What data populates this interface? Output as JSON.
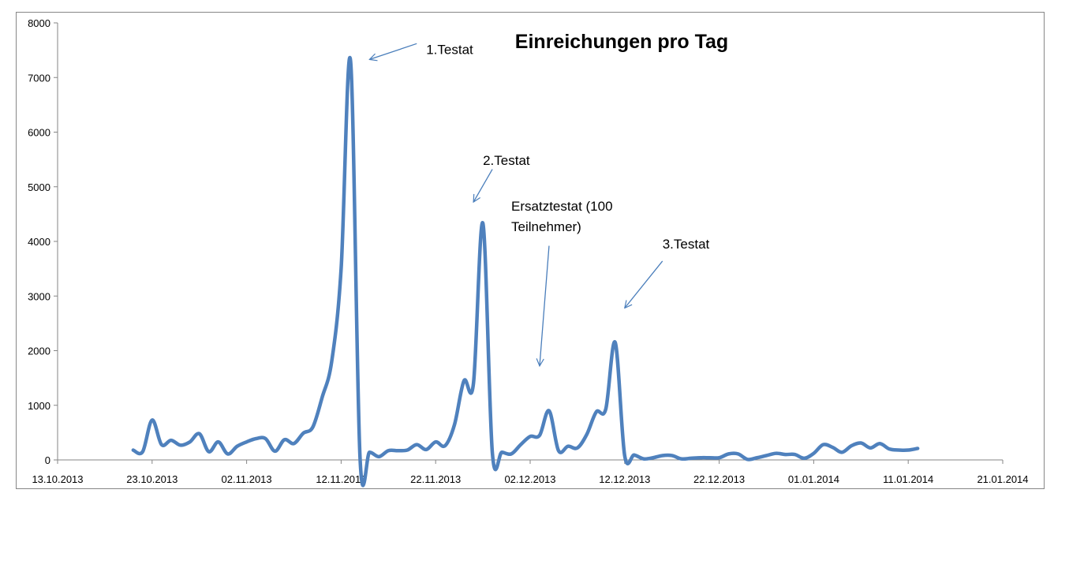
{
  "chart_data": {
    "type": "line",
    "title": "Einreichungen pro Tag",
    "xlabel": "",
    "ylabel": "",
    "x_axis": {
      "type": "date",
      "min": "2013-10-13",
      "max": "2014-01-21",
      "tick_labels": [
        "13.10.2013",
        "23.10.2013",
        "02.11.2013",
        "12.11.2013",
        "22.11.2013",
        "02.12.2013",
        "12.12.2013",
        "22.12.2013",
        "01.01.2014",
        "11.01.2014",
        "21.01.2014"
      ]
    },
    "ylim": [
      0,
      8000
    ],
    "y_ticks": [
      0,
      1000,
      2000,
      3000,
      4000,
      5000,
      6000,
      7000,
      8000
    ],
    "grid": false,
    "legend": "none",
    "series": [
      {
        "color": "#4f81bd",
        "points": [
          [
            "2013-10-21",
            180
          ],
          [
            "2013-10-22",
            150
          ],
          [
            "2013-10-23",
            730
          ],
          [
            "2013-10-24",
            280
          ],
          [
            "2013-10-25",
            360
          ],
          [
            "2013-10-26",
            270
          ],
          [
            "2013-10-27",
            330
          ],
          [
            "2013-10-28",
            480
          ],
          [
            "2013-10-29",
            150
          ],
          [
            "2013-10-30",
            330
          ],
          [
            "2013-10-31",
            110
          ],
          [
            "2013-11-01",
            250
          ],
          [
            "2013-11-02",
            330
          ],
          [
            "2013-11-03",
            390
          ],
          [
            "2013-11-04",
            390
          ],
          [
            "2013-11-05",
            160
          ],
          [
            "2013-11-06",
            370
          ],
          [
            "2013-11-07",
            300
          ],
          [
            "2013-11-08",
            490
          ],
          [
            "2013-11-09",
            600
          ],
          [
            "2013-11-10",
            1150
          ],
          [
            "2013-11-11",
            1800
          ],
          [
            "2013-11-12",
            3500
          ],
          [
            "2013-11-13",
            7300
          ],
          [
            "2013-11-14",
            40
          ],
          [
            "2013-11-15",
            140
          ],
          [
            "2013-11-16",
            60
          ],
          [
            "2013-11-17",
            170
          ],
          [
            "2013-11-18",
            170
          ],
          [
            "2013-11-19",
            180
          ],
          [
            "2013-11-20",
            280
          ],
          [
            "2013-11-21",
            190
          ],
          [
            "2013-11-22",
            330
          ],
          [
            "2013-11-23",
            260
          ],
          [
            "2013-11-24",
            650
          ],
          [
            "2013-11-25",
            1450
          ],
          [
            "2013-11-26",
            1400
          ],
          [
            "2013-11-27",
            4330
          ],
          [
            "2013-11-28",
            130
          ],
          [
            "2013-11-29",
            140
          ],
          [
            "2013-11-30",
            110
          ],
          [
            "2013-12-01",
            280
          ],
          [
            "2013-12-02",
            430
          ],
          [
            "2013-12-03",
            450
          ],
          [
            "2013-12-04",
            900
          ],
          [
            "2013-12-05",
            170
          ],
          [
            "2013-12-06",
            250
          ],
          [
            "2013-12-07",
            220
          ],
          [
            "2013-12-08",
            470
          ],
          [
            "2013-12-09",
            880
          ],
          [
            "2013-12-10",
            930
          ],
          [
            "2013-12-11",
            2150
          ],
          [
            "2013-12-12",
            80
          ],
          [
            "2013-12-13",
            90
          ],
          [
            "2013-12-14",
            20
          ],
          [
            "2013-12-15",
            40
          ],
          [
            "2013-12-16",
            80
          ],
          [
            "2013-12-17",
            80
          ],
          [
            "2013-12-18",
            20
          ],
          [
            "2013-12-19",
            30
          ],
          [
            "2013-12-20",
            40
          ],
          [
            "2013-12-21",
            40
          ],
          [
            "2013-12-22",
            40
          ],
          [
            "2013-12-23",
            110
          ],
          [
            "2013-12-24",
            110
          ],
          [
            "2013-12-25",
            10
          ],
          [
            "2013-12-26",
            40
          ],
          [
            "2013-12-27",
            80
          ],
          [
            "2013-12-28",
            120
          ],
          [
            "2013-12-29",
            100
          ],
          [
            "2013-12-30",
            100
          ],
          [
            "2013-12-31",
            30
          ],
          [
            "2014-01-01",
            120
          ],
          [
            "2014-01-02",
            280
          ],
          [
            "2014-01-03",
            230
          ],
          [
            "2014-01-04",
            140
          ],
          [
            "2014-01-05",
            260
          ],
          [
            "2014-01-06",
            310
          ],
          [
            "2014-01-07",
            220
          ],
          [
            "2014-01-08",
            300
          ],
          [
            "2014-01-09",
            200
          ],
          [
            "2014-01-10",
            180
          ],
          [
            "2014-01-11",
            180
          ],
          [
            "2014-01-12",
            210
          ]
        ]
      }
    ],
    "annotations": [
      {
        "lines": [
          "1.Testat"
        ],
        "text_at": [
          "2013-11-21",
          7430
        ],
        "arrow_from": [
          "2013-11-20",
          7620
        ],
        "arrow_to": [
          "2013-11-15",
          7330
        ]
      },
      {
        "lines": [
          "2.Testat"
        ],
        "text_at": [
          "2013-11-27",
          5400
        ],
        "arrow_from": [
          "2013-11-28",
          5320
        ],
        "arrow_to": [
          "2013-11-26",
          4720
        ]
      },
      {
        "lines": [
          "Ersatztestat (100",
          "Teilnehmer)"
        ],
        "text_at": [
          "2013-11-30",
          4560
        ],
        "arrow_from": [
          "2013-12-04",
          3920
        ],
        "arrow_to": [
          "2013-12-03",
          1720
        ]
      },
      {
        "lines": [
          "3.Testat"
        ],
        "text_at": [
          "2013-12-16",
          3870
        ],
        "arrow_from": [
          "2013-12-16",
          3640
        ],
        "arrow_to": [
          "2013-12-12",
          2780
        ]
      }
    ]
  }
}
